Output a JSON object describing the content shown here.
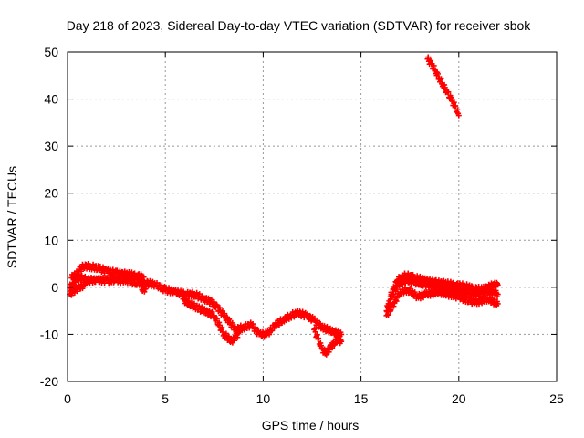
{
  "chart_data": {
    "type": "scatter",
    "title": "Day 218 of 2023, Sidereal Day-to-day VTEC variation (SDTVAR) for receiver sbok",
    "xlabel": "GPS time / hours",
    "ylabel": "SDTVAR / TECUs",
    "xlim": [
      0,
      25
    ],
    "ylim": [
      -20,
      50
    ],
    "xticks": [
      0,
      5,
      10,
      15,
      20,
      25
    ],
    "yticks": [
      -20,
      -10,
      0,
      10,
      20,
      30,
      40,
      50
    ],
    "grid": true,
    "marker_color": "#ff0000",
    "series": [
      {
        "name": "upper band",
        "points": [
          [
            0.2,
            2
          ],
          [
            0.5,
            3
          ],
          [
            0.8,
            4.5
          ],
          [
            1.2,
            4.4
          ],
          [
            1.6,
            4
          ],
          [
            2,
            3.5
          ],
          [
            2.5,
            3
          ],
          [
            3,
            2.8
          ],
          [
            3.5,
            2.5
          ],
          [
            3.9,
            2.2
          ]
        ]
      },
      {
        "name": "main track",
        "points": [
          [
            0.1,
            0
          ],
          [
            0.3,
            0.5
          ],
          [
            0.5,
            1.8
          ],
          [
            0.8,
            2
          ],
          [
            1,
            1.5
          ],
          [
            1.5,
            1.5
          ],
          [
            2,
            1.5
          ],
          [
            2.5,
            1.5
          ],
          [
            3,
            1.5
          ],
          [
            3.5,
            1
          ],
          [
            4,
            1
          ],
          [
            4.5,
            0.5
          ],
          [
            5,
            -0.5
          ],
          [
            5.5,
            -1
          ],
          [
            6,
            -1.5
          ],
          [
            6.5,
            -1.5
          ],
          [
            7,
            -2.5
          ],
          [
            7.3,
            -3
          ],
          [
            7.6,
            -4
          ],
          [
            8,
            -6
          ],
          [
            8.3,
            -7.5
          ],
          [
            8.6,
            -9
          ],
          [
            9,
            -8.5
          ],
          [
            9.4,
            -8
          ],
          [
            9.8,
            -10
          ],
          [
            10.2,
            -10
          ],
          [
            10.6,
            -8
          ],
          [
            11,
            -7
          ],
          [
            11.4,
            -6
          ],
          [
            11.8,
            -5.5
          ],
          [
            12.2,
            -6
          ],
          [
            12.6,
            -7
          ],
          [
            13,
            -8.5
          ],
          [
            13.3,
            -9
          ],
          [
            13.6,
            -9.5
          ],
          [
            14,
            -10
          ]
        ]
      },
      {
        "name": "low branch",
        "points": [
          [
            0.1,
            -1.5
          ],
          [
            0.3,
            -0.8
          ],
          [
            0.6,
            0
          ],
          [
            0.9,
            0.5
          ],
          [
            3.8,
            -0.5
          ],
          [
            4,
            -0.3
          ],
          [
            5.9,
            -2.5
          ],
          [
            6.2,
            -3.5
          ],
          [
            7.5,
            -6
          ],
          [
            8,
            -10
          ],
          [
            8.4,
            -11.5
          ],
          [
            8.8,
            -9.5
          ],
          [
            12.6,
            -9
          ],
          [
            12.8,
            -11
          ],
          [
            13,
            -13
          ],
          [
            13.2,
            -14
          ],
          [
            13.5,
            -12.5
          ],
          [
            13.8,
            -11
          ],
          [
            14,
            -11.5
          ]
        ]
      },
      {
        "name": "afternoon track",
        "points": [
          [
            16.3,
            -5
          ],
          [
            16.4,
            -3.5
          ],
          [
            16.6,
            -1.5
          ],
          [
            16.8,
            0
          ],
          [
            17,
            1
          ],
          [
            17.3,
            1.5
          ],
          [
            17.7,
            1.2
          ],
          [
            18.1,
            0.8
          ],
          [
            18.5,
            0.5
          ],
          [
            19,
            0
          ],
          [
            19.5,
            -0.5
          ],
          [
            20,
            -1
          ],
          [
            20.5,
            -1.5
          ],
          [
            21,
            -1.5
          ],
          [
            21.5,
            -1
          ],
          [
            21.8,
            -1
          ],
          [
            22,
            -1.5
          ]
        ]
      },
      {
        "name": "afternoon upper",
        "points": [
          [
            16.5,
            -2
          ],
          [
            16.8,
            1
          ],
          [
            17,
            2
          ],
          [
            17.3,
            2.5
          ],
          [
            17.8,
            2
          ],
          [
            18.2,
            1.5
          ],
          [
            18.8,
            1
          ],
          [
            19.3,
            0.8
          ],
          [
            19.8,
            0.5
          ],
          [
            20.3,
            0.2
          ],
          [
            20.8,
            -0.3
          ],
          [
            21.2,
            -0.5
          ],
          [
            21.5,
            0
          ],
          [
            21.8,
            0.5
          ],
          [
            22,
            0.5
          ]
        ]
      },
      {
        "name": "afternoon lower",
        "points": [
          [
            16.3,
            -6
          ],
          [
            16.6,
            -4
          ],
          [
            17,
            -1
          ],
          [
            17.4,
            -0.5
          ],
          [
            17.9,
            -2
          ],
          [
            18.3,
            -1.5
          ],
          [
            19,
            -1
          ],
          [
            20,
            -2
          ],
          [
            20.6,
            -3
          ],
          [
            21,
            -3
          ],
          [
            21.5,
            -2.5
          ],
          [
            22,
            -3.5
          ]
        ]
      },
      {
        "name": "steep segment",
        "points": [
          [
            18.4,
            48.5
          ],
          [
            18.6,
            47.5
          ],
          [
            18.8,
            46
          ],
          [
            19,
            44.5
          ],
          [
            19.2,
            43
          ],
          [
            19.4,
            41.5
          ],
          [
            19.6,
            40
          ],
          [
            19.8,
            38.5
          ],
          [
            20,
            36.5
          ]
        ]
      }
    ]
  }
}
